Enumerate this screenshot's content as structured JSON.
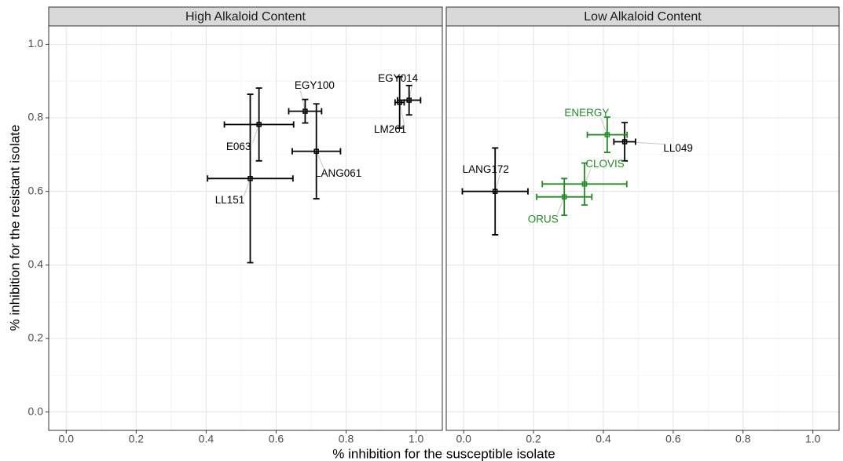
{
  "chart_data": [
    {
      "type": "scatter",
      "title": "High Alkaloid Content",
      "xlabel": "% inhibition for the susceptible isolate",
      "ylabel": "% inhibition for the resistant isolate",
      "labels": [
        "EGY100",
        "E063",
        "LANG061",
        "LL151",
        "EGY014",
        "LM261"
      ],
      "x": [
        0.683,
        0.551,
        0.715,
        0.526,
        0.98,
        0.953
      ],
      "y": [
        0.818,
        0.782,
        0.709,
        0.635,
        0.848,
        0.842
      ],
      "xerr": [
        0.047,
        0.099,
        0.069,
        0.122,
        0.033,
        0.013
      ],
      "yerr": [
        0.032,
        0.099,
        0.129,
        0.229,
        0.04,
        0.07
      ],
      "colors": [
        "#000000",
        "#000000",
        "#000000",
        "#000000",
        "#000000",
        "#000000"
      ],
      "xlim": [
        -0.05,
        1.075
      ],
      "ylim": [
        -0.05,
        1.05
      ],
      "xticks": [
        {
          "value": 0,
          "label": "0.0"
        },
        {
          "value": 0.2,
          "label": "0.2"
        },
        {
          "value": 0.4,
          "label": "0.4"
        },
        {
          "value": 0.6,
          "label": "0.6"
        },
        {
          "value": 0.8,
          "label": "0.8"
        },
        {
          "value": 1,
          "label": "1.0"
        }
      ],
      "yticks": [
        {
          "value": 0,
          "label": "0.0"
        },
        {
          "value": 0.2,
          "label": "0.2"
        },
        {
          "value": 0.4,
          "label": "0.4"
        },
        {
          "value": 0.6,
          "label": "0.6"
        },
        {
          "value": 0.8,
          "label": "0.8"
        },
        {
          "value": 1,
          "label": "1.0"
        }
      ],
      "xminor": [
        0.1,
        0.3,
        0.5,
        0.7,
        0.9
      ],
      "yminor": [
        0.1,
        0.3,
        0.5,
        0.7,
        0.9
      ],
      "grid": true
    },
    {
      "type": "scatter",
      "title": "Low Alkaloid Content",
      "labels": [
        "LANG172",
        "LL049",
        "ENERGY",
        "CLOVIS",
        "ORUS"
      ],
      "x": [
        0.09,
        0.461,
        0.411,
        0.346,
        0.288
      ],
      "y": [
        0.6,
        0.735,
        0.754,
        0.62,
        0.585
      ],
      "xerr": [
        0.094,
        0.031,
        0.057,
        0.121,
        0.079
      ],
      "yerr": [
        0.118,
        0.052,
        0.048,
        0.057,
        0.05
      ],
      "colors": [
        "#000000",
        "#000000",
        "#228b22",
        "#228b22",
        "#228b22"
      ],
      "xlim": [
        -0.05,
        1.075
      ],
      "ylim": [
        -0.05,
        1.05
      ],
      "xticks": [
        {
          "value": 0,
          "label": "0.0"
        },
        {
          "value": 0.2,
          "label": "0.2"
        },
        {
          "value": 0.4,
          "label": "0.4"
        },
        {
          "value": 0.6,
          "label": "0.6"
        },
        {
          "value": 0.8,
          "label": "0.8"
        },
        {
          "value": 1,
          "label": "1.0"
        }
      ],
      "yticks": [
        {
          "value": 0,
          "label": "0.0"
        },
        {
          "value": 0.2,
          "label": "0.2"
        },
        {
          "value": 0.4,
          "label": "0.4"
        },
        {
          "value": 0.6,
          "label": "0.6"
        },
        {
          "value": 0.8,
          "label": "0.8"
        },
        {
          "value": 1,
          "label": "1.0"
        }
      ],
      "xminor": [
        0.1,
        0.3,
        0.5,
        0.7,
        0.9
      ],
      "yminor": [
        0.1,
        0.3,
        0.5,
        0.7,
        0.9
      ],
      "grid": true
    }
  ]
}
